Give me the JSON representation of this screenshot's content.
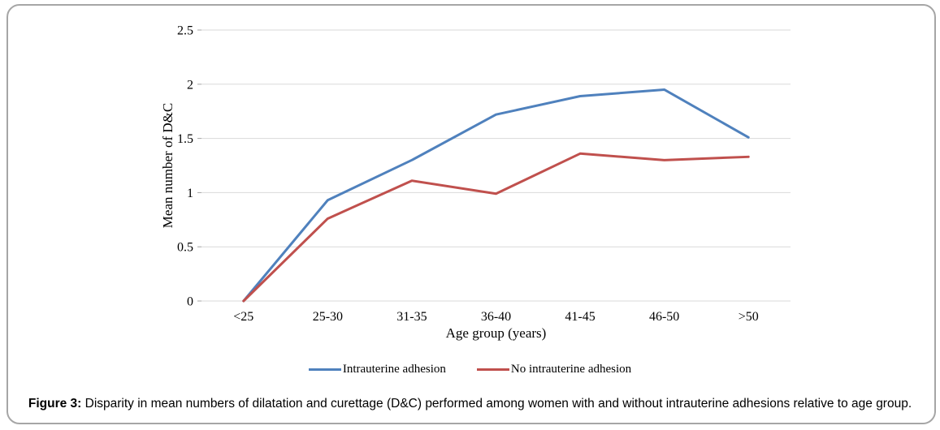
{
  "figure": {
    "caption_label": "Figure 3:",
    "caption_text": " Disparity in mean numbers of dilatation and curettage (D&C) performed among women with and without intrauterine adhesions relative to age group."
  },
  "chart_data": {
    "type": "line",
    "title": "",
    "xlabel": "Age group (years)",
    "ylabel": "Mean number of D&C",
    "categories": [
      "<25",
      "25-30",
      "31-35",
      "36-40",
      "41-45",
      "46-50",
      ">50"
    ],
    "series": [
      {
        "name": "Intrauterine adhesion",
        "color": "#4F81BD",
        "values": [
          0,
          0.93,
          1.3,
          1.72,
          1.89,
          1.95,
          1.51
        ]
      },
      {
        "name": "No intrauterine adhesion",
        "color": "#C0504D",
        "values": [
          0,
          0.76,
          1.11,
          0.99,
          1.36,
          1.3,
          1.33
        ]
      }
    ],
    "ylim": [
      0,
      2.5
    ],
    "ytick_step": 0.5,
    "yticks": [
      "0",
      "0.5",
      "1",
      "1.5",
      "2",
      "2.5"
    ],
    "grid": "horizontal",
    "gridline_color": "#d9d9d9",
    "tick_color": "#a6a6a6",
    "legend_position": "bottom"
  }
}
